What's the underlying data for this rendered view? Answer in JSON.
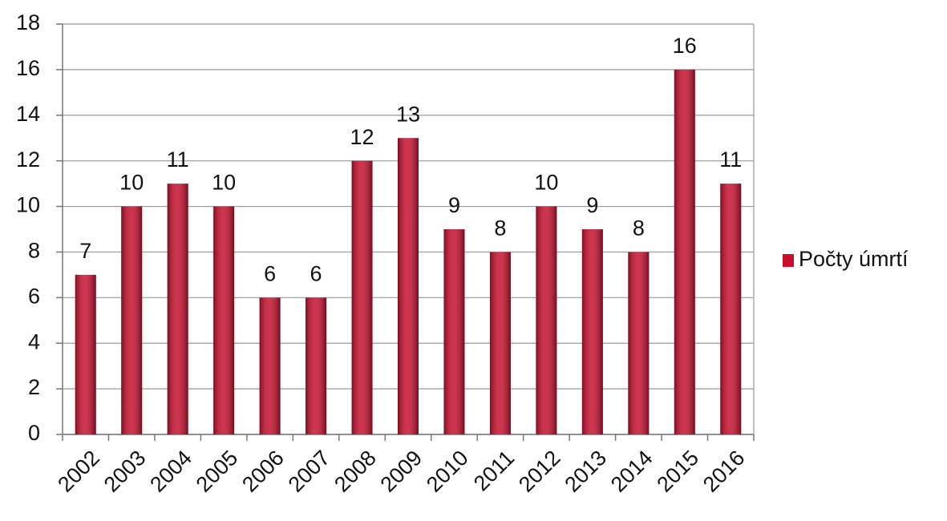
{
  "chart_data": {
    "type": "bar",
    "categories": [
      "2002",
      "2003",
      "2004",
      "2005",
      "2006",
      "2007",
      "2008",
      "2009",
      "2010",
      "2011",
      "2012",
      "2013",
      "2014",
      "2015",
      "2016"
    ],
    "series": [
      {
        "name": "Počty úmrtí",
        "color": "#c8102e",
        "values": [
          7,
          10,
          11,
          10,
          6,
          6,
          12,
          13,
          9,
          8,
          10,
          9,
          8,
          16,
          11
        ]
      }
    ],
    "ylim": [
      0,
      18
    ],
    "yticks": [
      0,
      2,
      4,
      6,
      8,
      10,
      12,
      14,
      16,
      18
    ],
    "grid": true,
    "legend": "right",
    "data_labels": true
  }
}
